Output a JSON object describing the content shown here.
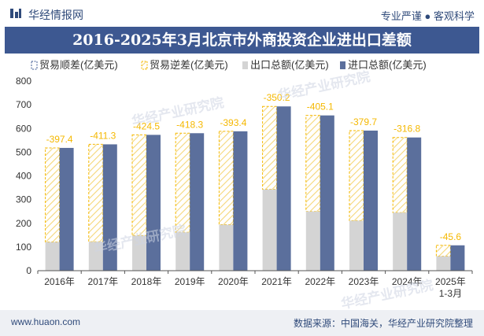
{
  "header": {
    "brand": "华经情报网",
    "tagline": "专业严谨 ● 客观科学"
  },
  "title": "2016-2025年3月北京市外商投资企业进出口差额",
  "footer": {
    "website": "www.huaon.com",
    "source": "数据来源：中国海关，华经产业研究院整理"
  },
  "watermark": "华经产业研究院",
  "colors": {
    "title_bg": "#3d5891",
    "surplus": "#3d5891",
    "deficit_stroke": "#f5b800",
    "deficit_hatch": "#f5d77a",
    "export": "#d4d4d4",
    "import": "#5b6f9c",
    "label": "#f5b800"
  },
  "chart_data": {
    "type": "bar",
    "categories": [
      "2016年",
      "2017年",
      "2018年",
      "2019年",
      "2020年",
      "2021年",
      "2022年",
      "2023年",
      "2024年",
      "2025年\n1-3月"
    ],
    "legend": [
      "贸易顺差(亿美元)",
      "贸易逆差(亿美元)",
      "出口总额(亿美元)",
      "进口总额(亿美元)"
    ],
    "series": [
      {
        "name": "贸易逆差(亿美元)",
        "values": [
          -397.4,
          -411.3,
          -424.5,
          -418.3,
          -393.4,
          -350.2,
          -405.1,
          -379.7,
          -316.8,
          -45.6
        ]
      },
      {
        "name": "出口总额(亿美元)",
        "values": [
          121,
          122,
          148,
          162,
          194,
          343,
          250,
          211,
          245,
          61
        ]
      },
      {
        "name": "进口总额(亿美元)",
        "values": [
          518,
          533,
          573,
          580,
          588,
          693,
          655,
          591,
          562,
          107
        ]
      }
    ],
    "data_labels": [
      "-397.4",
      "-411.3",
      "-424.5",
      "-418.3",
      "-393.4",
      "-350.2",
      "-405.1",
      "-379.7",
      "-316.8",
      "-45.6"
    ],
    "y_ticks": [
      "0",
      "100",
      "200",
      "300",
      "400",
      "500",
      "600",
      "700",
      "800"
    ],
    "ylim": [
      0,
      800
    ],
    "grid": false,
    "legend_position": "top-left"
  }
}
